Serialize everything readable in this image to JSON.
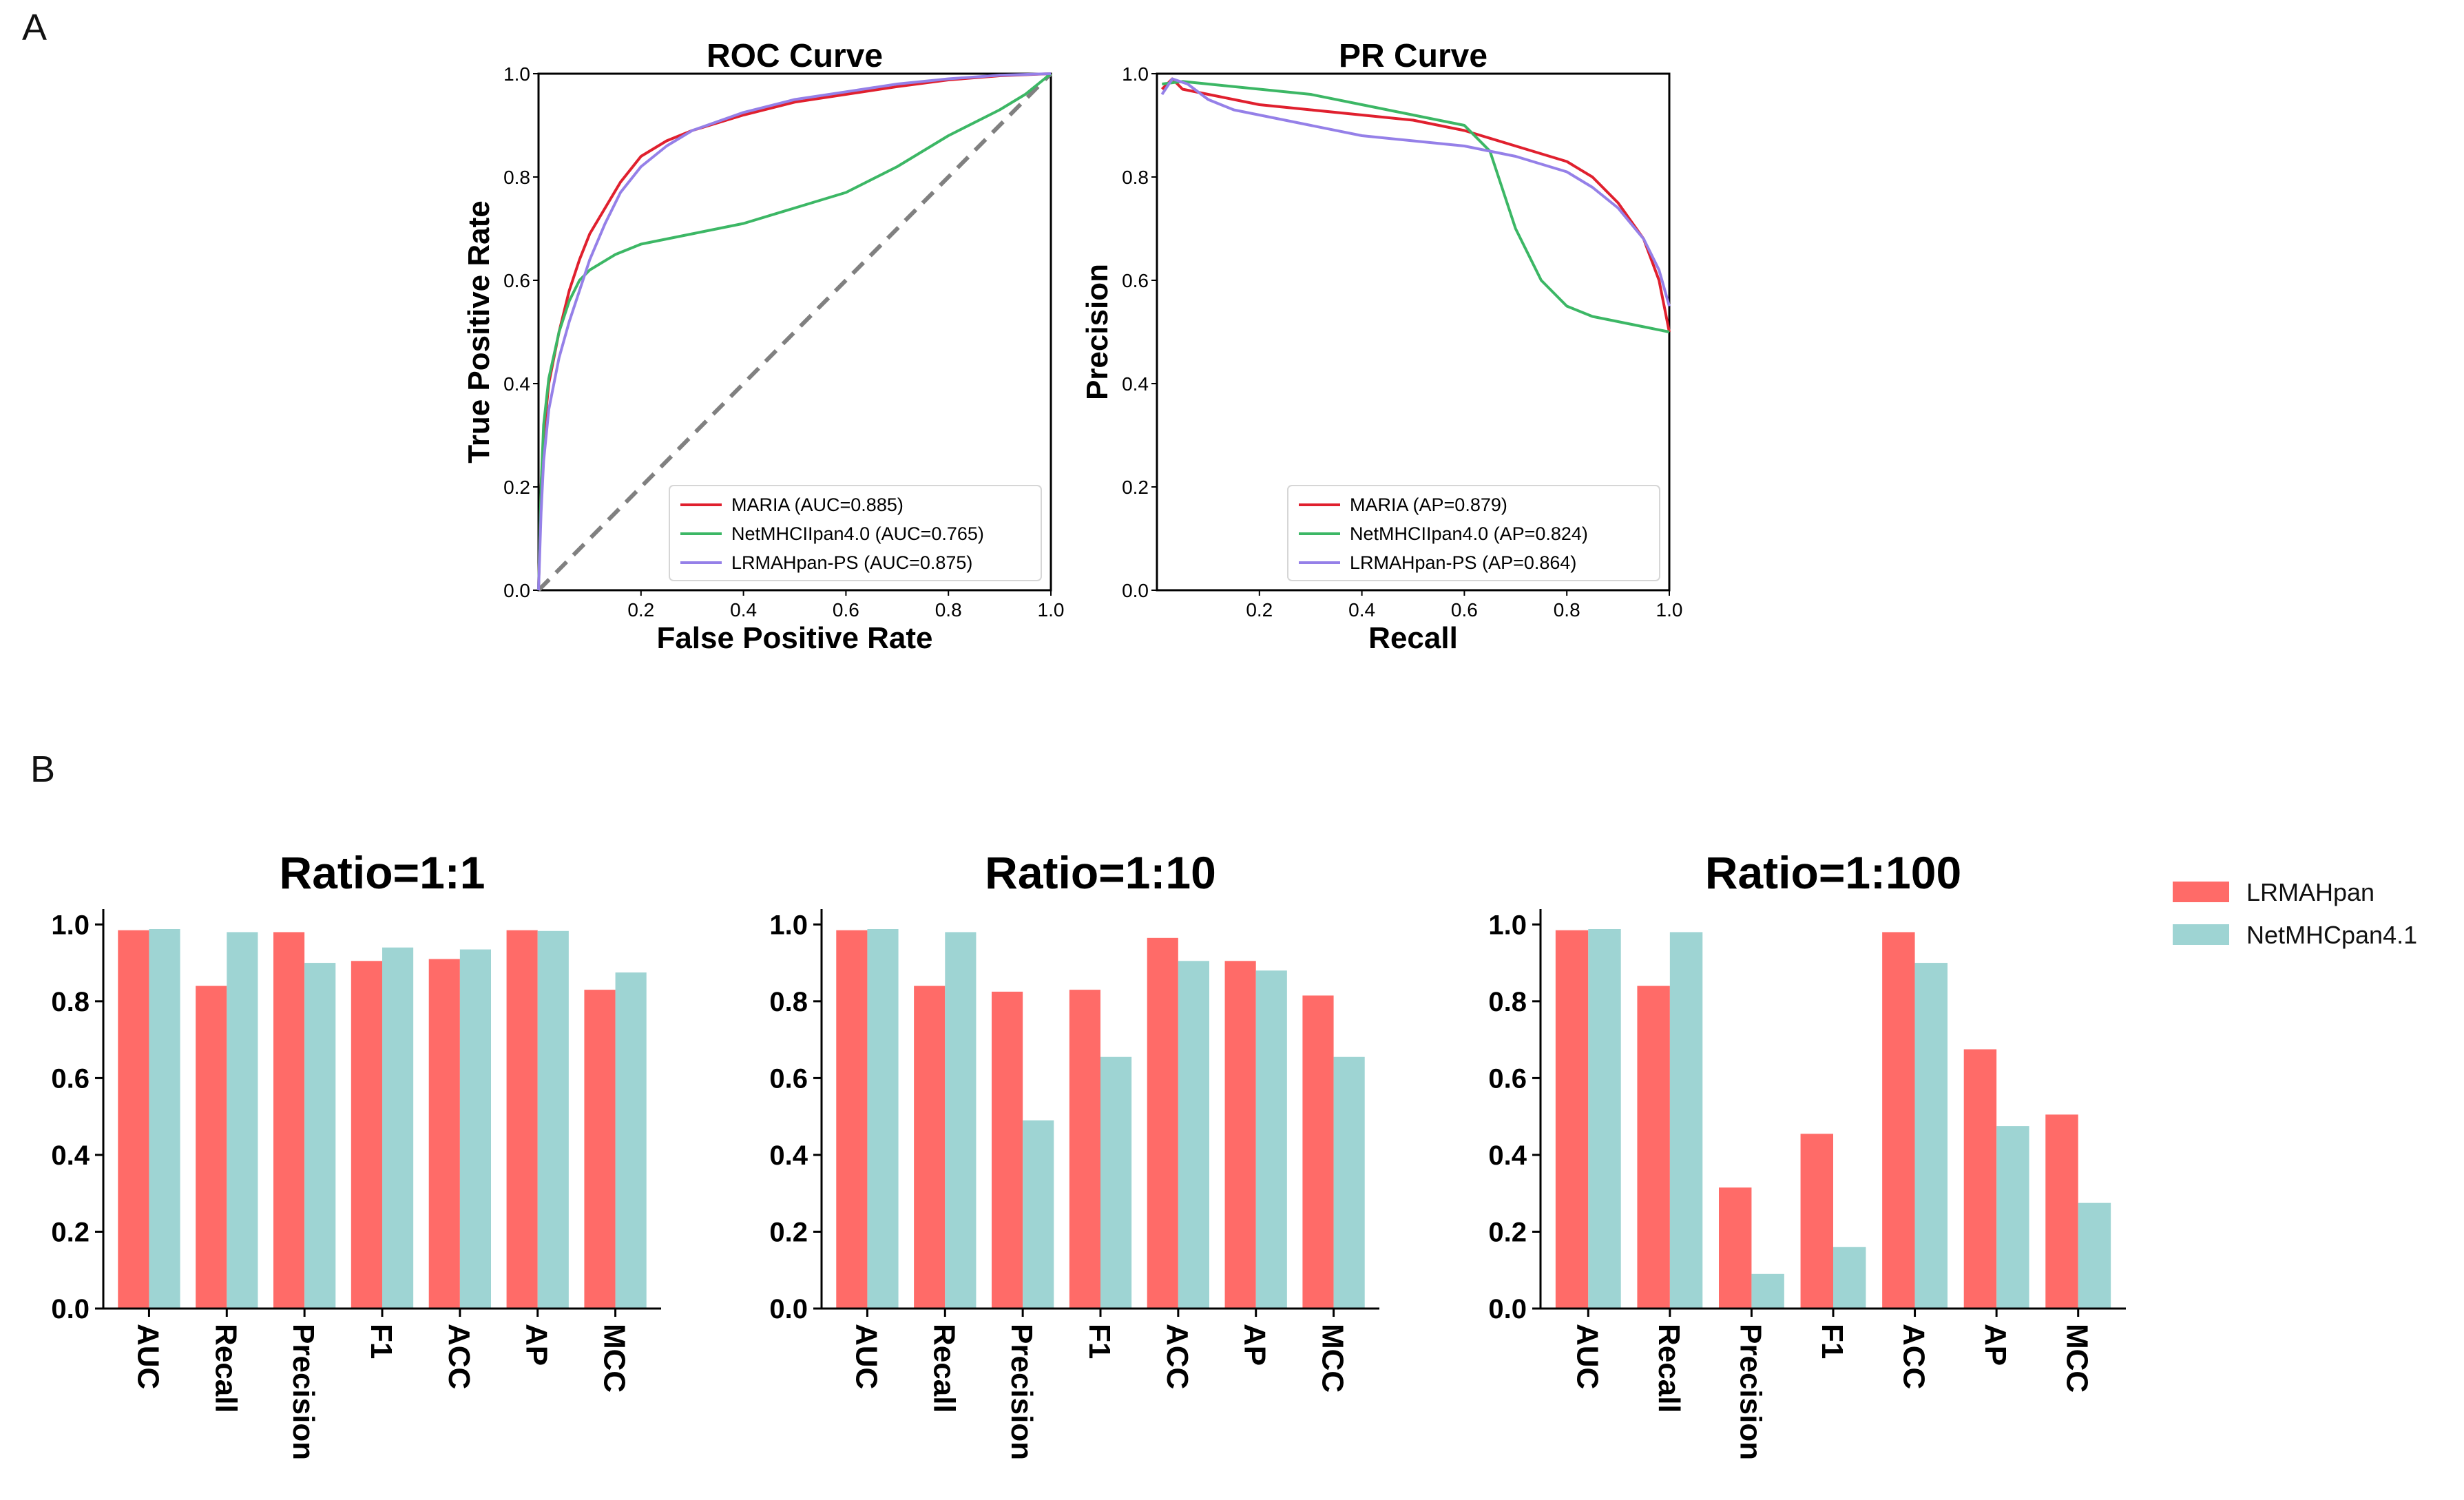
{
  "panels": {
    "a": "A",
    "b": "B"
  },
  "colors": {
    "maria": "#e0202e",
    "netmhciipan": "#3cb765",
    "lrmahpan_ps": "#9580e8",
    "diagonal": "#808080",
    "bar_lrmahpan": "#ff6b68",
    "bar_netmhcpan": "#9ed4d3"
  },
  "chart_data": [
    {
      "id": "roc",
      "type": "line",
      "title": "ROC Curve",
      "xlabel": "False Positive Rate",
      "ylabel": "True Positive Rate",
      "xlim": [
        0,
        1
      ],
      "ylim": [
        0,
        1
      ],
      "xticks": [
        "0.2",
        "0.4",
        "0.6",
        "0.8",
        "1.0"
      ],
      "yticks": [
        "0.0",
        "0.2",
        "0.4",
        "0.6",
        "0.8",
        "1.0"
      ],
      "legend_position": "lower-right",
      "diagonal": true,
      "series": [
        {
          "name": "MARIA (AUC=0.885)",
          "color_key": "maria",
          "points": [
            [
              0,
              0
            ],
            [
              0.005,
              0.2
            ],
            [
              0.01,
              0.3
            ],
            [
              0.02,
              0.4
            ],
            [
              0.04,
              0.5
            ],
            [
              0.06,
              0.58
            ],
            [
              0.08,
              0.64
            ],
            [
              0.1,
              0.69
            ],
            [
              0.13,
              0.74
            ],
            [
              0.16,
              0.79
            ],
            [
              0.2,
              0.84
            ],
            [
              0.25,
              0.87
            ],
            [
              0.3,
              0.89
            ],
            [
              0.4,
              0.92
            ],
            [
              0.5,
              0.945
            ],
            [
              0.6,
              0.96
            ],
            [
              0.7,
              0.975
            ],
            [
              0.8,
              0.988
            ],
            [
              0.9,
              0.996
            ],
            [
              1,
              1
            ]
          ]
        },
        {
          "name": "NetMHCIIpan4.0 (AUC=0.765)",
          "color_key": "netmhciipan",
          "points": [
            [
              0,
              0
            ],
            [
              0.005,
              0.2
            ],
            [
              0.01,
              0.32
            ],
            [
              0.02,
              0.41
            ],
            [
              0.04,
              0.5
            ],
            [
              0.06,
              0.56
            ],
            [
              0.08,
              0.6
            ],
            [
              0.1,
              0.62
            ],
            [
              0.15,
              0.65
            ],
            [
              0.2,
              0.67
            ],
            [
              0.3,
              0.69
            ],
            [
              0.4,
              0.71
            ],
            [
              0.5,
              0.74
            ],
            [
              0.6,
              0.77
            ],
            [
              0.7,
              0.82
            ],
            [
              0.8,
              0.88
            ],
            [
              0.9,
              0.93
            ],
            [
              0.95,
              0.96
            ],
            [
              1,
              1
            ]
          ]
        },
        {
          "name": "LRMAHpan-PS (AUC=0.875)",
          "color_key": "lrmahpan_ps",
          "points": [
            [
              0,
              0
            ],
            [
              0.005,
              0.15
            ],
            [
              0.01,
              0.25
            ],
            [
              0.02,
              0.35
            ],
            [
              0.04,
              0.45
            ],
            [
              0.06,
              0.52
            ],
            [
              0.08,
              0.58
            ],
            [
              0.1,
              0.64
            ],
            [
              0.13,
              0.71
            ],
            [
              0.16,
              0.77
            ],
            [
              0.2,
              0.82
            ],
            [
              0.25,
              0.86
            ],
            [
              0.3,
              0.89
            ],
            [
              0.4,
              0.925
            ],
            [
              0.5,
              0.95
            ],
            [
              0.6,
              0.965
            ],
            [
              0.7,
              0.98
            ],
            [
              0.8,
              0.99
            ],
            [
              0.9,
              0.997
            ],
            [
              1,
              1
            ]
          ]
        }
      ]
    },
    {
      "id": "pr",
      "type": "line",
      "title": "PR Curve",
      "xlabel": "Recall",
      "ylabel": "Precision",
      "xlim": [
        0,
        1
      ],
      "ylim": [
        0,
        1
      ],
      "xticks": [
        "0.2",
        "0.4",
        "0.6",
        "0.8",
        "1.0"
      ],
      "yticks": [
        "0.0",
        "0.2",
        "0.4",
        "0.6",
        "0.8",
        "1.0"
      ],
      "legend_position": "lower-right",
      "diagonal": false,
      "series": [
        {
          "name": "MARIA (AP=0.879)",
          "color_key": "maria",
          "points": [
            [
              0.01,
              0.97
            ],
            [
              0.03,
              0.99
            ],
            [
              0.05,
              0.97
            ],
            [
              0.1,
              0.96
            ],
            [
              0.15,
              0.95
            ],
            [
              0.2,
              0.94
            ],
            [
              0.3,
              0.93
            ],
            [
              0.4,
              0.92
            ],
            [
              0.5,
              0.91
            ],
            [
              0.6,
              0.89
            ],
            [
              0.7,
              0.86
            ],
            [
              0.8,
              0.83
            ],
            [
              0.85,
              0.8
            ],
            [
              0.9,
              0.75
            ],
            [
              0.95,
              0.68
            ],
            [
              0.98,
              0.6
            ],
            [
              1,
              0.5
            ]
          ]
        },
        {
          "name": "NetMHCIIpan4.0 (AP=0.824)",
          "color_key": "netmhciipan",
          "points": [
            [
              0.01,
              0.98
            ],
            [
              0.05,
              0.985
            ],
            [
              0.1,
              0.98
            ],
            [
              0.2,
              0.97
            ],
            [
              0.3,
              0.96
            ],
            [
              0.4,
              0.94
            ],
            [
              0.5,
              0.92
            ],
            [
              0.6,
              0.9
            ],
            [
              0.65,
              0.85
            ],
            [
              0.7,
              0.7
            ],
            [
              0.75,
              0.6
            ],
            [
              0.8,
              0.55
            ],
            [
              0.85,
              0.53
            ],
            [
              0.9,
              0.52
            ],
            [
              0.95,
              0.51
            ],
            [
              1,
              0.5
            ]
          ]
        },
        {
          "name": "LRMAHpan-PS  (AP=0.864)",
          "color_key": "lrmahpan_ps",
          "points": [
            [
              0.01,
              0.96
            ],
            [
              0.03,
              0.99
            ],
            [
              0.06,
              0.98
            ],
            [
              0.1,
              0.95
            ],
            [
              0.15,
              0.93
            ],
            [
              0.2,
              0.92
            ],
            [
              0.3,
              0.9
            ],
            [
              0.4,
              0.88
            ],
            [
              0.5,
              0.87
            ],
            [
              0.6,
              0.86
            ],
            [
              0.7,
              0.84
            ],
            [
              0.8,
              0.81
            ],
            [
              0.85,
              0.78
            ],
            [
              0.9,
              0.74
            ],
            [
              0.95,
              0.68
            ],
            [
              0.98,
              0.62
            ],
            [
              1,
              0.55
            ]
          ]
        }
      ]
    },
    {
      "id": "bar1",
      "type": "bar",
      "title": "Ratio=1:1",
      "categories": [
        "AUC",
        "Recall",
        "Precision",
        "F1",
        "ACC",
        "AP",
        "MCC"
      ],
      "ylim": [
        0,
        1.04
      ],
      "yticks": [
        "0.0",
        "0.2",
        "0.4",
        "0.6",
        "0.8",
        "1.0"
      ],
      "series": [
        {
          "name": "LRMAHpan",
          "color_key": "bar_lrmahpan",
          "values": [
            0.985,
            0.84,
            0.98,
            0.905,
            0.91,
            0.985,
            0.83
          ]
        },
        {
          "name": "NetMHCpan4.1",
          "color_key": "bar_netmhcpan",
          "values": [
            0.988,
            0.98,
            0.9,
            0.94,
            0.935,
            0.983,
            0.875
          ]
        }
      ]
    },
    {
      "id": "bar10",
      "type": "bar",
      "title": "Ratio=1:10",
      "categories": [
        "AUC",
        "Recall",
        "Precision",
        "F1",
        "ACC",
        "AP",
        "MCC"
      ],
      "ylim": [
        0,
        1.04
      ],
      "yticks": [
        "0.0",
        "0.2",
        "0.4",
        "0.6",
        "0.8",
        "1.0"
      ],
      "series": [
        {
          "name": "LRMAHpan",
          "color_key": "bar_lrmahpan",
          "values": [
            0.985,
            0.84,
            0.825,
            0.83,
            0.965,
            0.905,
            0.815
          ]
        },
        {
          "name": "NetMHCpan4.1",
          "color_key": "bar_netmhcpan",
          "values": [
            0.988,
            0.98,
            0.49,
            0.655,
            0.905,
            0.88,
            0.655
          ]
        }
      ]
    },
    {
      "id": "bar100",
      "type": "bar",
      "title": "Ratio=1:100",
      "categories": [
        "AUC",
        "Recall",
        "Precision",
        "F1",
        "ACC",
        "AP",
        "MCC"
      ],
      "ylim": [
        0,
        1.04
      ],
      "yticks": [
        "0.0",
        "0.2",
        "0.4",
        "0.6",
        "0.8",
        "1.0"
      ],
      "series": [
        {
          "name": "LRMAHpan",
          "color_key": "bar_lrmahpan",
          "values": [
            0.985,
            0.84,
            0.315,
            0.455,
            0.98,
            0.675,
            0.505
          ]
        },
        {
          "name": "NetMHCpan4.1",
          "color_key": "bar_netmhcpan",
          "values": [
            0.988,
            0.98,
            0.09,
            0.16,
            0.9,
            0.475,
            0.275
          ]
        }
      ]
    }
  ],
  "bar_legend": [
    {
      "label": "LRMAHpan",
      "color_key": "bar_lrmahpan"
    },
    {
      "label": "NetMHCpan4.1",
      "color_key": "bar_netmhcpan"
    }
  ]
}
